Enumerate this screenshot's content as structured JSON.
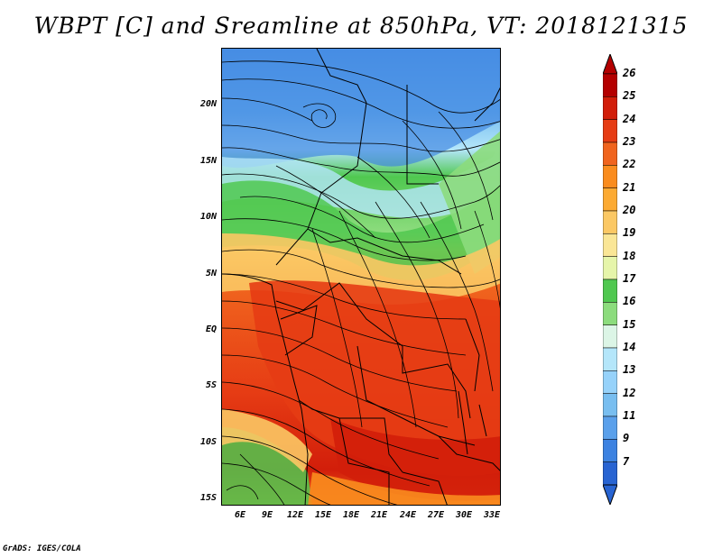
{
  "title": "WBPT [C] and Sreamline at 850hPa, VT: 2018121315",
  "footer": "GrADS: IGES/COLA",
  "map": {
    "lat_labels": [
      "20N",
      "15N",
      "10N",
      "5N",
      "EQ",
      "5S",
      "10S",
      "15S"
    ],
    "lat_values": [
      20,
      15,
      10,
      5,
      0,
      -5,
      -10,
      -15
    ],
    "lon_labels": [
      "6E",
      "9E",
      "12E",
      "15E",
      "18E",
      "21E",
      "24E",
      "27E",
      "30E",
      "33E"
    ],
    "lon_values": [
      6,
      9,
      12,
      15,
      18,
      21,
      24,
      27,
      30,
      33
    ],
    "lon_range": [
      4,
      33.5
    ],
    "lat_range": [
      -16,
      24.5
    ]
  },
  "colorbar": {
    "labels": [
      "26",
      "25",
      "24",
      "23",
      "22",
      "21",
      "20",
      "19",
      "18",
      "17",
      "16",
      "15",
      "14",
      "13",
      "12",
      "11",
      "9",
      "7"
    ],
    "colors": [
      "#b40000",
      "#d21e0a",
      "#e63c14",
      "#f0641e",
      "#fa8c1e",
      "#fcaa32",
      "#fbc864",
      "#fae696",
      "#e6f5aa",
      "#50c850",
      "#8cdc7d",
      "#dcf5e6",
      "#b4e6fa",
      "#96d2fa",
      "#78bef0",
      "#5aa0eb",
      "#3c82e1",
      "#2864d2"
    ]
  }
}
